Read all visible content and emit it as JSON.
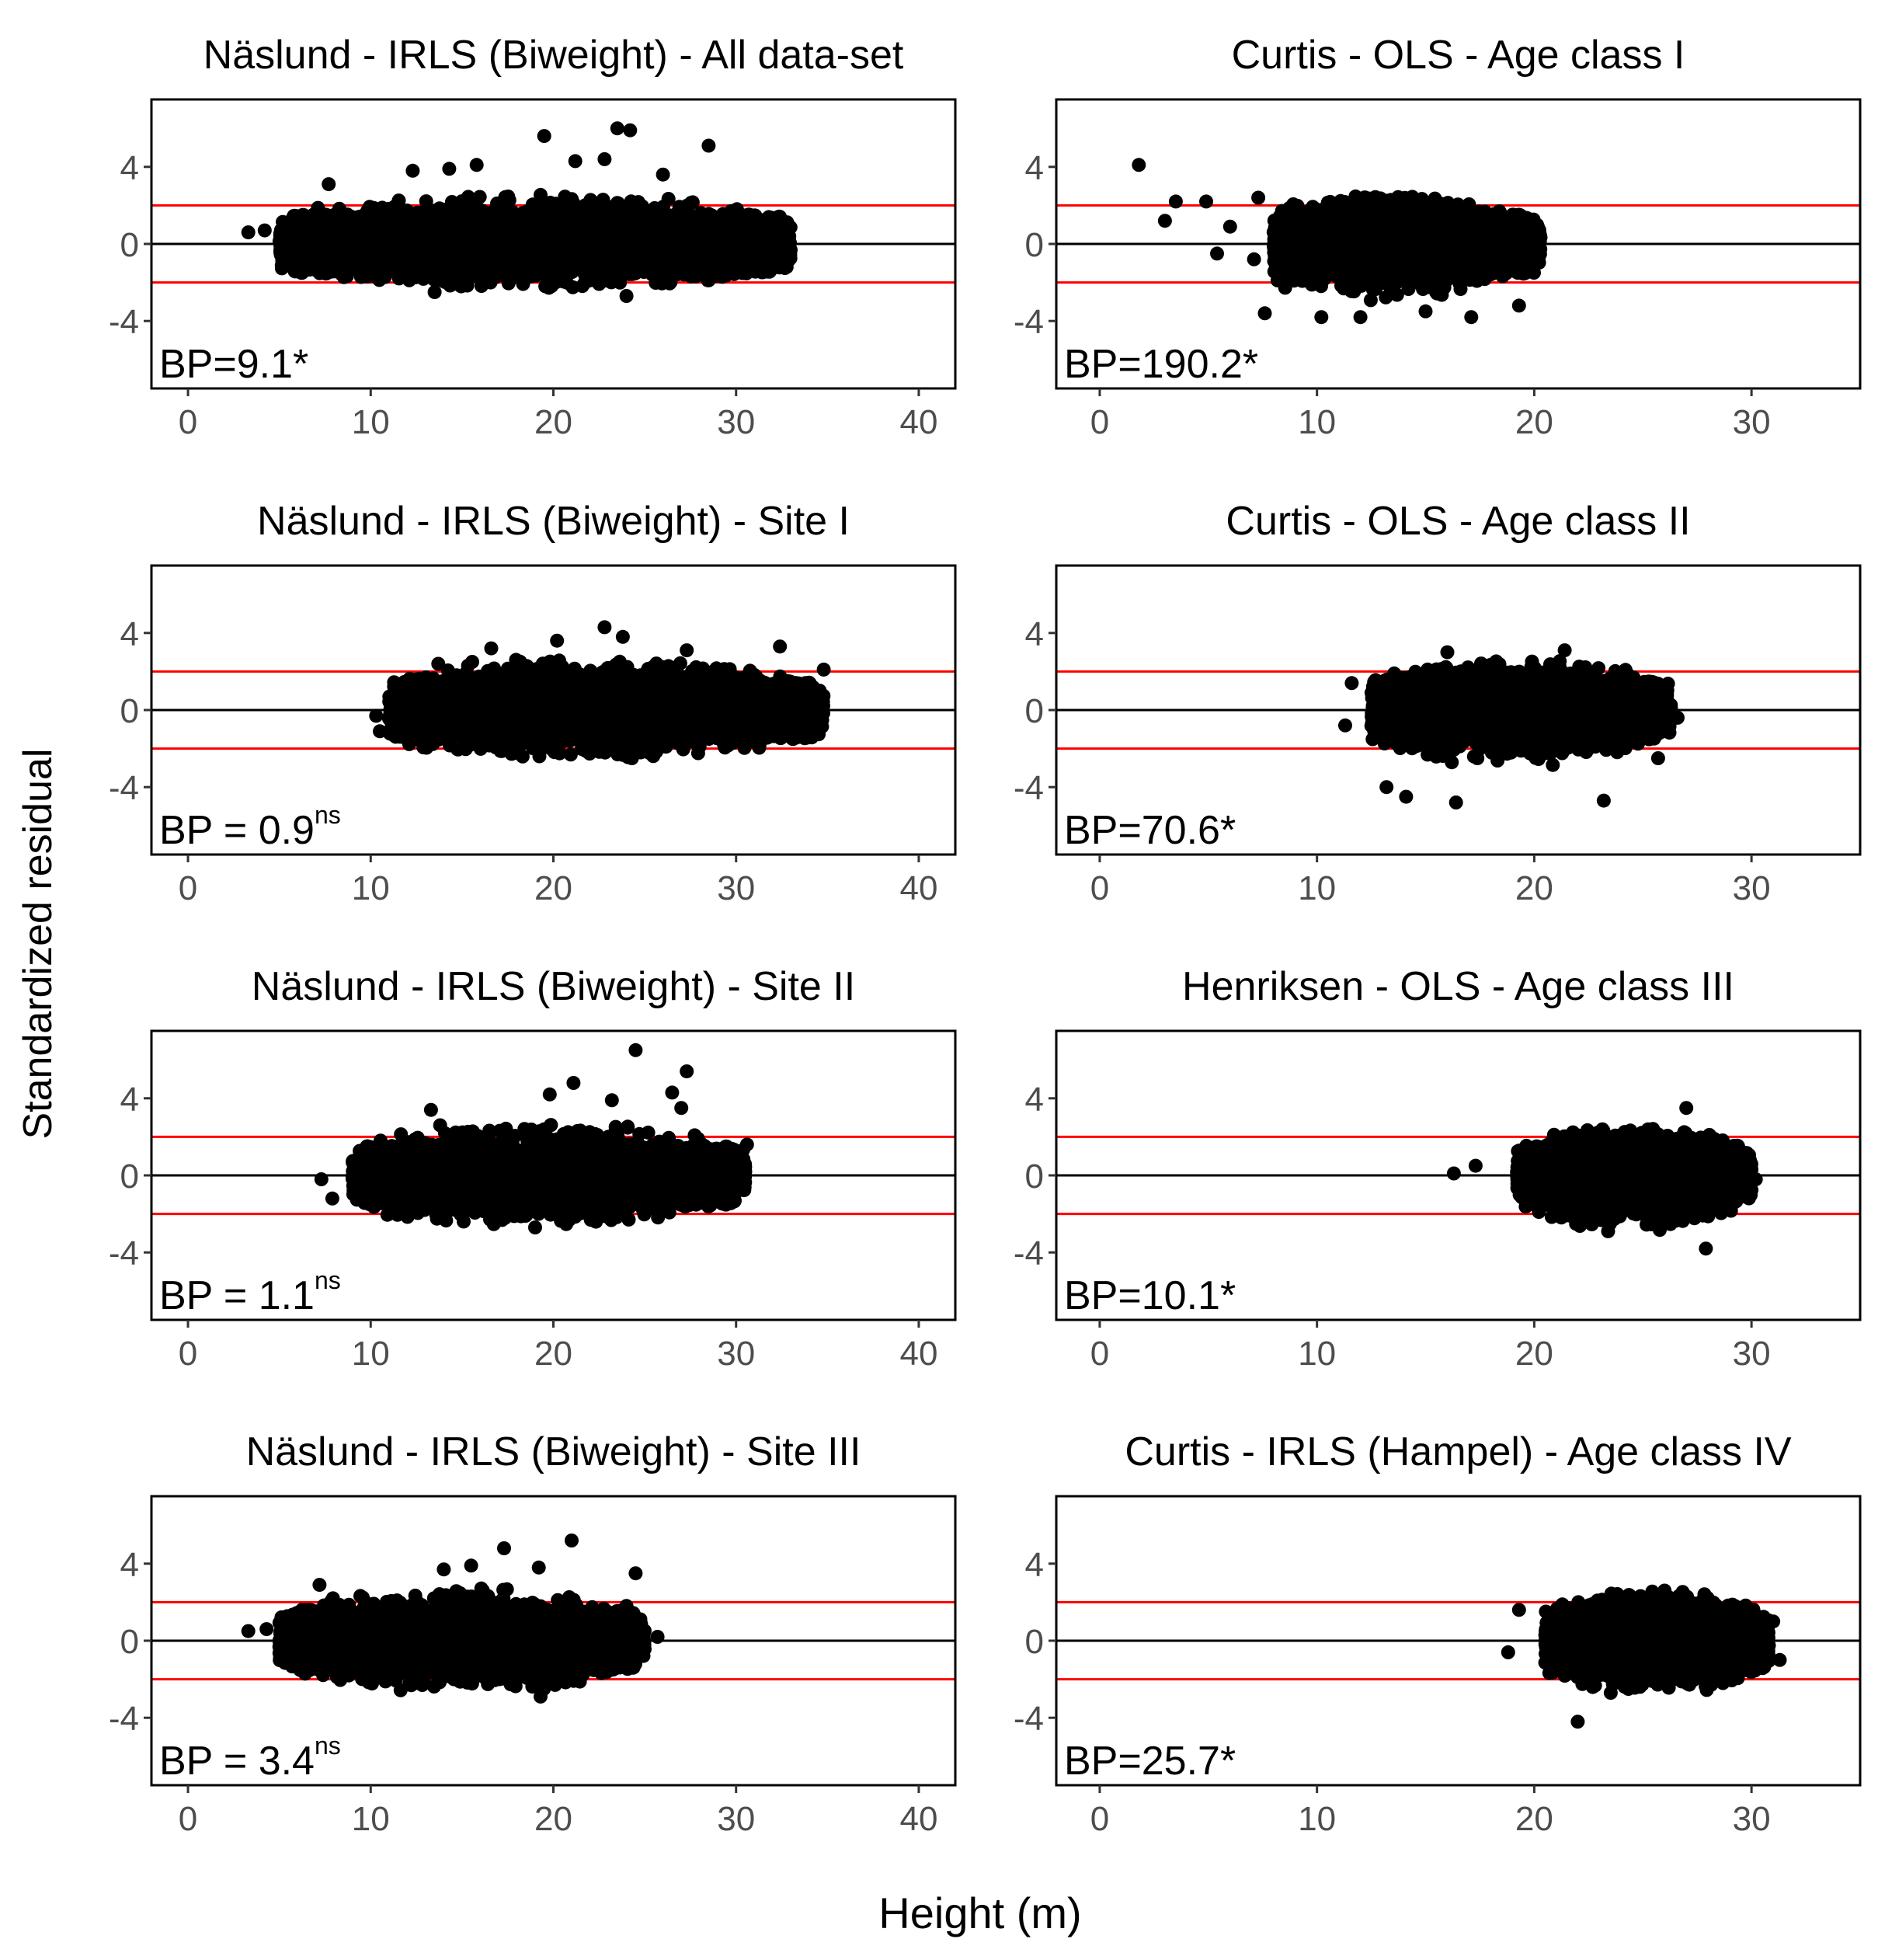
{
  "figure": {
    "ylabel": "Standardized residual",
    "xlabel": "Height (m)"
  },
  "colors": {
    "points": "#000000",
    "zero_line": "#000000",
    "limit_lines": "#ff0000",
    "panel_border": "#000000",
    "tick_label": "#4d4d4d"
  },
  "chart_data": [
    {
      "type": "scatter",
      "title": "Näslund - IRLS (Biweight) - All data-set",
      "stat_label": "BP=9.1*",
      "stat_superscript": "",
      "xlim": [
        -2,
        42
      ],
      "ylim": [
        -7.5,
        7.5
      ],
      "xticks": [
        "0",
        "10",
        "20",
        "30",
        "40"
      ],
      "yticks": [
        "4",
        "0",
        "-4"
      ],
      "reference_lines": [
        2,
        0,
        -2
      ],
      "cloud": {
        "x_min": 5,
        "x_max": 33,
        "center": 19,
        "sd_low": -2.3,
        "sd_high": 2.6
      },
      "outliers": [
        [
          3.3,
          0.6
        ],
        [
          4.2,
          0.7
        ],
        [
          7.7,
          3.1
        ],
        [
          12.3,
          3.8
        ],
        [
          14.3,
          3.9
        ],
        [
          15.8,
          4.1
        ],
        [
          19.5,
          5.6
        ],
        [
          21.2,
          4.3
        ],
        [
          22.8,
          4.4
        ],
        [
          23.5,
          6.0
        ],
        [
          24.2,
          5.9
        ],
        [
          28.5,
          5.1
        ],
        [
          26.0,
          3.6
        ],
        [
          24.0,
          -2.7
        ],
        [
          13.5,
          -2.5
        ]
      ]
    },
    {
      "type": "scatter",
      "title": "Curtis - OLS - Age class I",
      "stat_label": "BP=190.2*",
      "stat_superscript": "",
      "xlim": [
        -2,
        35
      ],
      "ylim": [
        -7.5,
        7.5
      ],
      "xticks": [
        "0",
        "10",
        "20",
        "30"
      ],
      "yticks": [
        "4",
        "0",
        "-4"
      ],
      "reference_lines": [
        2,
        0,
        -2
      ],
      "cloud": {
        "x_min": 8,
        "x_max": 20.3,
        "center": 13,
        "sd_low": -3.2,
        "sd_high": 2.5
      },
      "outliers": [
        [
          1.8,
          4.1
        ],
        [
          3.0,
          1.2
        ],
        [
          3.5,
          2.2
        ],
        [
          4.9,
          2.2
        ],
        [
          5.4,
          -0.5
        ],
        [
          6.0,
          0.9
        ],
        [
          7.1,
          -0.8
        ],
        [
          7.3,
          2.4
        ],
        [
          7.6,
          -3.6
        ],
        [
          10.2,
          -3.8
        ],
        [
          12.0,
          -3.8
        ],
        [
          15.0,
          -3.5
        ],
        [
          17.1,
          -3.8
        ],
        [
          19.3,
          -3.2
        ]
      ]
    },
    {
      "type": "scatter",
      "title": "Näslund - IRLS (Biweight) - Site I",
      "stat_label": "BP = 0.9",
      "stat_superscript": "ns",
      "xlim": [
        -2,
        42
      ],
      "ylim": [
        -7.5,
        7.5
      ],
      "xticks": [
        "0",
        "10",
        "20",
        "30",
        "40"
      ],
      "yticks": [
        "4",
        "0",
        "-4"
      ],
      "reference_lines": [
        2,
        0,
        -2
      ],
      "cloud": {
        "x_min": 11,
        "x_max": 34.8,
        "center": 22,
        "sd_low": -2.5,
        "sd_high": 2.8
      },
      "outliers": [
        [
          10.3,
          -0.3
        ],
        [
          10.5,
          -1.1
        ],
        [
          13.7,
          2.4
        ],
        [
          16.6,
          3.2
        ],
        [
          20.2,
          3.6
        ],
        [
          22.8,
          4.3
        ],
        [
          23.8,
          3.8
        ],
        [
          24.3,
          -2.5
        ],
        [
          32.4,
          3.3
        ],
        [
          34.8,
          2.1
        ],
        [
          27.3,
          3.1
        ]
      ]
    },
    {
      "type": "scatter",
      "title": "Curtis - OLS -  Age class II",
      "stat_label": "BP=70.6*",
      "stat_superscript": "",
      "xlim": [
        -2,
        35
      ],
      "ylim": [
        -7.5,
        7.5
      ],
      "xticks": [
        "0",
        "10",
        "20",
        "30"
      ],
      "yticks": [
        "4",
        "0",
        "-4"
      ],
      "reference_lines": [
        2,
        0,
        -2
      ],
      "cloud": {
        "x_min": 12.5,
        "x_max": 26.3,
        "center": 19,
        "sd_low": -3.0,
        "sd_high": 2.7
      },
      "outliers": [
        [
          11.3,
          -0.8
        ],
        [
          11.6,
          1.4
        ],
        [
          13.2,
          -4.0
        ],
        [
          14.1,
          -4.5
        ],
        [
          16.4,
          -4.8
        ],
        [
          16.0,
          3.0
        ],
        [
          23.2,
          -4.7
        ],
        [
          21.4,
          3.1
        ],
        [
          26.6,
          -0.4
        ],
        [
          25.7,
          -2.5
        ]
      ]
    },
    {
      "type": "scatter",
      "title": "Näslund - IRLS (Biweight) - Site II",
      "stat_label": "BP = 1.1",
      "stat_superscript": "ns",
      "xlim": [
        -2,
        42
      ],
      "ylim": [
        -7.5,
        7.5
      ],
      "xticks": [
        "0",
        "10",
        "20",
        "30",
        "40"
      ],
      "yticks": [
        "4",
        "0",
        "-4"
      ],
      "reference_lines": [
        2,
        0,
        -2
      ],
      "cloud": {
        "x_min": 9,
        "x_max": 30.5,
        "center": 19,
        "sd_low": -2.6,
        "sd_high": 2.9
      },
      "outliers": [
        [
          7.3,
          -0.2
        ],
        [
          7.9,
          -1.2
        ],
        [
          13.3,
          3.4
        ],
        [
          13.8,
          2.6
        ],
        [
          19.8,
          4.2
        ],
        [
          21.1,
          4.8
        ],
        [
          23.2,
          3.9
        ],
        [
          24.5,
          6.5
        ],
        [
          26.5,
          4.3
        ],
        [
          27.3,
          5.4
        ],
        [
          27.0,
          3.5
        ],
        [
          30.5,
          0.2
        ],
        [
          30.6,
          1.6
        ],
        [
          19.0,
          -2.7
        ]
      ]
    },
    {
      "type": "scatter",
      "title": "Henriksen - OLS -  Age class III",
      "stat_label": "BP=10.1*",
      "stat_superscript": "",
      "xlim": [
        -2,
        35
      ],
      "ylim": [
        -7.5,
        7.5
      ],
      "xticks": [
        "0",
        "10",
        "20",
        "30"
      ],
      "yticks": [
        "4",
        "0",
        "-4"
      ],
      "reference_lines": [
        2,
        0,
        -2
      ],
      "cloud": {
        "x_min": 19.2,
        "x_max": 30,
        "center": 24.5,
        "sd_low": -3.0,
        "sd_high": 2.5
      },
      "outliers": [
        [
          16.3,
          0.1
        ],
        [
          17.3,
          0.5
        ],
        [
          27.0,
          3.5
        ],
        [
          27.9,
          -3.8
        ],
        [
          23.4,
          -2.9
        ],
        [
          30.2,
          -0.2
        ]
      ]
    },
    {
      "type": "scatter",
      "title": "Näslund - IRLS (Biweight) - Site III",
      "stat_label": "BP = 3.4",
      "stat_superscript": "ns",
      "xlim": [
        -2,
        42
      ],
      "ylim": [
        -7.5,
        7.5
      ],
      "xticks": [
        "0",
        "10",
        "20",
        "30",
        "40"
      ],
      "yticks": [
        "4",
        "0",
        "-4"
      ],
      "reference_lines": [
        2,
        0,
        -2
      ],
      "cloud": {
        "x_min": 5,
        "x_max": 25,
        "center": 15,
        "sd_low": -2.7,
        "sd_high": 3.0
      },
      "outliers": [
        [
          3.3,
          0.5
        ],
        [
          4.3,
          0.6
        ],
        [
          7.2,
          2.9
        ],
        [
          14.0,
          3.7
        ],
        [
          15.5,
          3.9
        ],
        [
          17.3,
          4.8
        ],
        [
          19.2,
          3.8
        ],
        [
          21.0,
          5.2
        ],
        [
          24.5,
          3.5
        ],
        [
          25.7,
          0.2
        ],
        [
          19.3,
          -2.9
        ]
      ]
    },
    {
      "type": "scatter",
      "title": "Curtis - IRLS (Hampel) -  Age class IV",
      "stat_label": "BP=25.7*",
      "stat_superscript": "",
      "xlim": [
        -2,
        35
      ],
      "ylim": [
        -7.5,
        7.5
      ],
      "xticks": [
        "0",
        "10",
        "20",
        "30"
      ],
      "yticks": [
        "4",
        "0",
        "-4"
      ],
      "reference_lines": [
        2,
        0,
        -2
      ],
      "cloud": {
        "x_min": 20.5,
        "x_max": 30.8,
        "center": 25.5,
        "sd_low": -3.0,
        "sd_high": 2.6
      },
      "outliers": [
        [
          18.8,
          -0.6
        ],
        [
          19.3,
          1.6
        ],
        [
          22.0,
          -4.2
        ],
        [
          26.0,
          2.6
        ],
        [
          31.3,
          -1.0
        ],
        [
          31.0,
          1.0
        ]
      ]
    }
  ]
}
